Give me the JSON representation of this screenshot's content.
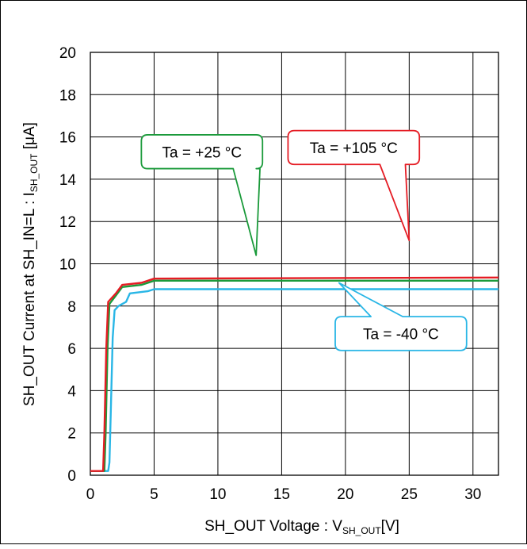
{
  "chart_data": {
    "type": "line",
    "title": "",
    "xlabel": "SH_OUT Voltage : V",
    "xlabel_sub": "SH_OUT",
    "xlabel_suffix": "[V]",
    "ylabel": "SH_OUT Current at  SH_IN=L : I",
    "ylabel_sub": "SH_OUT",
    "ylabel_suffix": " [μA]",
    "xlim": [
      0,
      32
    ],
    "ylim": [
      0,
      20
    ],
    "xticks": [
      0,
      5,
      10,
      15,
      20,
      25,
      30
    ],
    "yticks": [
      0,
      2,
      4,
      6,
      8,
      10,
      12,
      14,
      16,
      18,
      20
    ],
    "x_gridlines": [
      0,
      5,
      10,
      15,
      20,
      25,
      30
    ],
    "grid": true,
    "series": [
      {
        "name": "Ta = -40 °C",
        "color": "#29b6e6",
        "points": [
          [
            0,
            0.2
          ],
          [
            1.4,
            0.2
          ],
          [
            1.5,
            0.6
          ],
          [
            1.6,
            3
          ],
          [
            1.75,
            6.5
          ],
          [
            1.9,
            7.8
          ],
          [
            2.2,
            8.0
          ],
          [
            2.8,
            8.2
          ],
          [
            3.1,
            8.6
          ],
          [
            4.5,
            8.7
          ],
          [
            5.0,
            8.8
          ],
          [
            32,
            8.8
          ]
        ]
      },
      {
        "name": "Ta = +25 °C",
        "color": "#1a9a3a",
        "points": [
          [
            0,
            0.2
          ],
          [
            1.1,
            0.2
          ],
          [
            1.2,
            2
          ],
          [
            1.35,
            6
          ],
          [
            1.5,
            8.1
          ],
          [
            2.0,
            8.5
          ],
          [
            2.5,
            8.9
          ],
          [
            4.0,
            9.0
          ],
          [
            5.0,
            9.2
          ],
          [
            32,
            9.2
          ]
        ]
      },
      {
        "name": "Ta = +105 °C",
        "color": "#e51c24",
        "points": [
          [
            0,
            0.2
          ],
          [
            1.0,
            0.2
          ],
          [
            1.1,
            2
          ],
          [
            1.25,
            6
          ],
          [
            1.4,
            8.2
          ],
          [
            2.0,
            8.6
          ],
          [
            2.5,
            9.0
          ],
          [
            4.0,
            9.1
          ],
          [
            5.0,
            9.3
          ],
          [
            32,
            9.35
          ]
        ]
      }
    ],
    "annotations": [
      {
        "text": "Ta = +25 °C",
        "color": "#1a9a3a",
        "box": [
          4.0,
          14.5,
          13.5,
          16.1
        ],
        "pointer_base": [
          11.2,
          13.3,
          14.5
        ],
        "tip": [
          13.0,
          10.4
        ]
      },
      {
        "text": "Ta = +105 °C",
        "color": "#e51c24",
        "box": [
          15.5,
          14.7,
          25.8,
          16.3
        ],
        "pointer_base": [
          22.7,
          24.7,
          14.7
        ],
        "tip": [
          25.0,
          11.1
        ]
      },
      {
        "text": "Ta = -40 °C",
        "color": "#29b6e6",
        "box": [
          19.2,
          5.9,
          29.5,
          7.5
        ],
        "pointer_base": [
          22.0,
          24.5,
          7.5
        ],
        "tip": [
          19.5,
          9.1
        ]
      }
    ]
  }
}
